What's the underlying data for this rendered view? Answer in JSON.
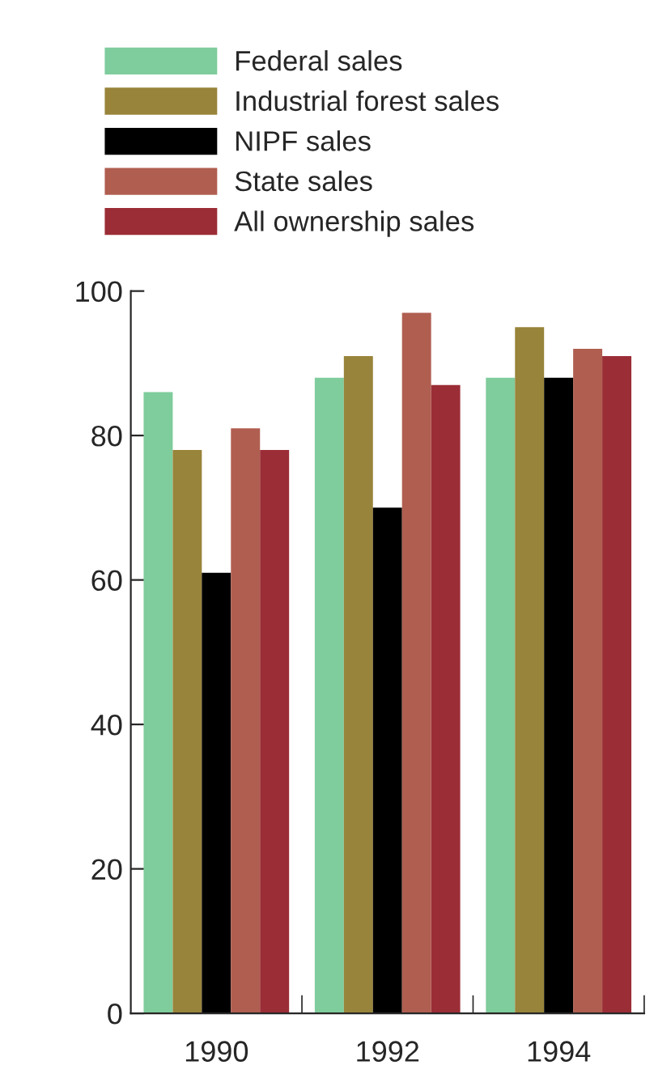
{
  "chart_data": {
    "type": "bar",
    "categories": [
      "1990",
      "1992",
      "1994"
    ],
    "series": [
      {
        "name": "Federal sales",
        "color": "#7fcc9c",
        "values": [
          86,
          88,
          88
        ]
      },
      {
        "name": "Industrial forest sales",
        "color": "#98843a",
        "values": [
          78,
          91,
          95
        ]
      },
      {
        "name": "NIPF sales",
        "color": "#000000",
        "values": [
          61,
          70,
          88
        ]
      },
      {
        "name": "State sales",
        "color": "#b05e50",
        "values": [
          81,
          97,
          92
        ]
      },
      {
        "name": "All ownership sales",
        "color": "#9b2d36",
        "values": [
          78,
          87,
          91
        ]
      }
    ],
    "ylim": [
      0,
      100
    ],
    "yticks": [
      0,
      20,
      40,
      60,
      80,
      100
    ],
    "grid": false,
    "legend": "top"
  }
}
